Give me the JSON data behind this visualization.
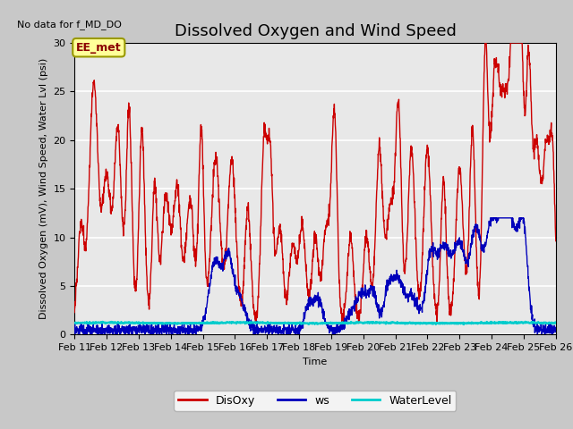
{
  "title": "Dissolved Oxygen and Wind Speed",
  "no_data_text": "No data for f_MD_DO",
  "annotation_text": "EE_met",
  "ylabel": "Dissolved Oxygen (mV), Wind Speed, Water Lvl (psi)",
  "xlabel": "Time",
  "xlim": [
    11,
    26
  ],
  "ylim": [
    0,
    30
  ],
  "yticks": [
    0,
    5,
    10,
    15,
    20,
    25,
    30
  ],
  "fig_bg": "#c8c8c8",
  "ax_bg": "#e8e8e8",
  "series": {
    "DisOxy": {
      "color": "#cc0000",
      "linewidth": 1.0
    },
    "ws": {
      "color": "#0000bb",
      "linewidth": 1.0
    },
    "WaterLevel": {
      "color": "#00cccc",
      "linewidth": 1.5
    }
  },
  "title_fontsize": 13,
  "label_fontsize": 8,
  "tick_fontsize": 8
}
